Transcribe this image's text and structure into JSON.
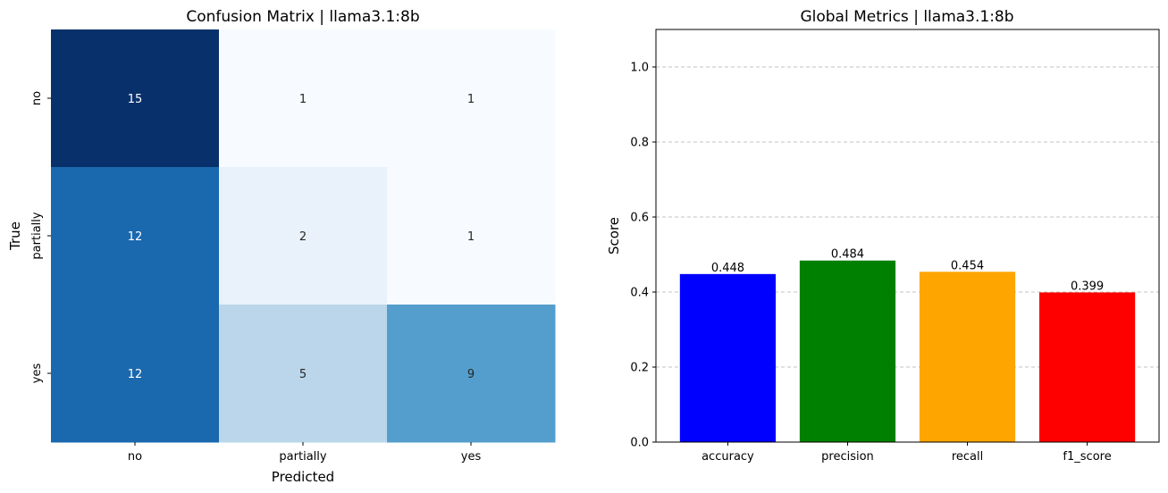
{
  "chart_data": [
    {
      "type": "heatmap",
      "title": "Confusion Matrix | llama3.1:8b",
      "xlabel": "Predicted",
      "ylabel": "True",
      "x_categories": [
        "no",
        "partially",
        "yes"
      ],
      "y_categories": [
        "no",
        "partially",
        "yes"
      ],
      "values": [
        [
          15,
          1,
          1
        ],
        [
          12,
          2,
          1
        ],
        [
          12,
          5,
          9
        ]
      ],
      "colormap": "Blues",
      "colorbar": false
    },
    {
      "type": "bar",
      "title": "Global Metrics | llama3.1:8b",
      "xlabel": "",
      "ylabel": "Score",
      "categories": [
        "accuracy",
        "precision",
        "recall",
        "f1_score"
      ],
      "values": [
        0.448,
        0.484,
        0.454,
        0.399
      ],
      "value_labels": [
        "0.448",
        "0.484",
        "0.454",
        "0.399"
      ],
      "colors": [
        "#0000ff",
        "#008000",
        "#ffa500",
        "#ff0000"
      ],
      "ylim": [
        0,
        1.1
      ],
      "yticks": [
        "0.0",
        "0.2",
        "0.4",
        "0.6",
        "0.8",
        "1.0"
      ],
      "grid": "y, dashed"
    }
  ]
}
